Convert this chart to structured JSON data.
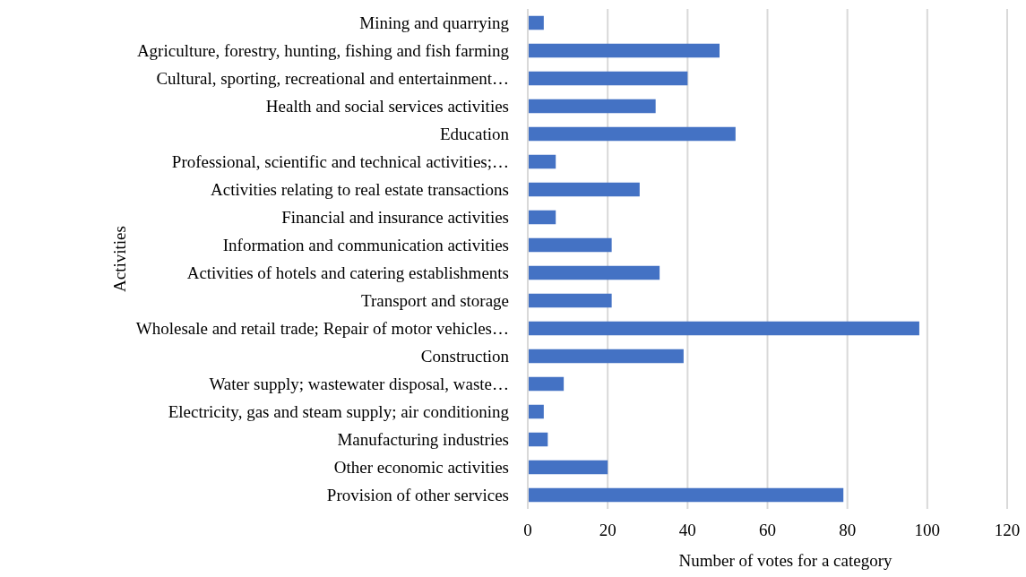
{
  "chart_data": {
    "type": "bar",
    "orientation": "horizontal",
    "xlabel": "Number of votes for a category",
    "ylabel": "Activities",
    "categories": [
      "Mining and quarrying",
      "Agriculture, forestry, hunting, fishing and fish farming",
      "Cultural, sporting, recreational and entertainment…",
      "Health and social services activities",
      "Education",
      "Professional, scientific and technical activities;…",
      "Activities relating to real estate transactions",
      "Financial and insurance activities",
      "Information and communication activities",
      "Activities of hotels and catering establishments",
      "Transport and storage",
      "Wholesale and retail trade; Repair of motor vehicles…",
      "Construction",
      "Water supply; wastewater disposal, waste…",
      "Electricity, gas and steam supply; air conditioning",
      "Manufacturing industries",
      "Other economic activities",
      "Provision of other services"
    ],
    "values": [
      4,
      48,
      40,
      32,
      52,
      7,
      28,
      7,
      21,
      33,
      21,
      98,
      39,
      9,
      4,
      5,
      20,
      79
    ],
    "color": "#4472c4",
    "xlim": [
      0,
      120
    ],
    "xticks": [
      0,
      20,
      40,
      60,
      80,
      100,
      120
    ],
    "grid": "x"
  }
}
